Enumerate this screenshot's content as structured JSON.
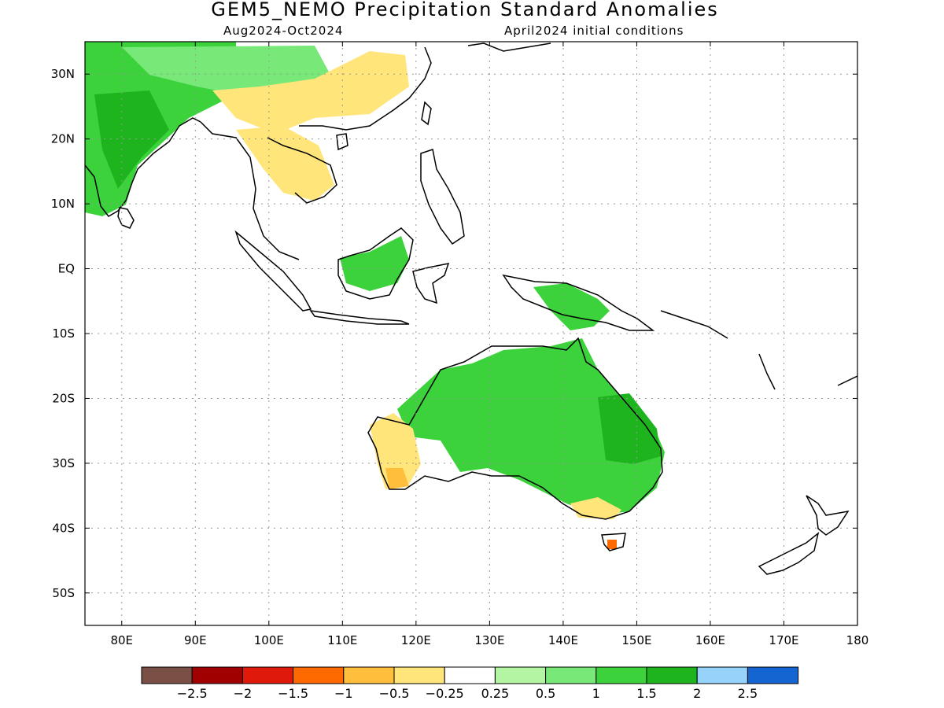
{
  "title": "GEM5_NEMO Precipitation Standard Anomalies",
  "period": "Aug2024-Oct2024",
  "initial_conditions": "April2024 initial conditions",
  "map": {
    "lon_range": [
      75,
      180
    ],
    "lat_range": [
      -55,
      35
    ],
    "lon_ticks": [
      {
        "value": 80,
        "label": "80E"
      },
      {
        "value": 90,
        "label": "90E"
      },
      {
        "value": 100,
        "label": "100E"
      },
      {
        "value": 110,
        "label": "110E"
      },
      {
        "value": 120,
        "label": "120E"
      },
      {
        "value": 130,
        "label": "130E"
      },
      {
        "value": 140,
        "label": "140E"
      },
      {
        "value": 150,
        "label": "150E"
      },
      {
        "value": 160,
        "label": "160E"
      },
      {
        "value": 170,
        "label": "170E"
      },
      {
        "value": 180,
        "label": "180"
      }
    ],
    "lat_ticks": [
      {
        "value": 30,
        "label": "30N"
      },
      {
        "value": 20,
        "label": "20N"
      },
      {
        "value": 10,
        "label": "10N"
      },
      {
        "value": 0,
        "label": "EQ"
      },
      {
        "value": -10,
        "label": "10S"
      },
      {
        "value": -20,
        "label": "20S"
      },
      {
        "value": -30,
        "label": "30S"
      },
      {
        "value": -40,
        "label": "40S"
      },
      {
        "value": -50,
        "label": "50S"
      }
    ],
    "grid": true
  },
  "colorbar": {
    "colors": [
      "#7a5046",
      "#a00000",
      "#e01a0a",
      "#ff6a00",
      "#ffbe3c",
      "#ffe57a",
      "#ffffff",
      "#b4f5a4",
      "#78e878",
      "#3cd23c",
      "#1eb41e",
      "#96d2fa",
      "#1464d2"
    ],
    "labels": [
      "-2.5",
      "-2",
      "-1.5",
      "-1",
      "-0.5",
      "-0.25",
      "0.25",
      "0.5",
      "1",
      "1.5",
      "2",
      "2.5"
    ]
  },
  "regions": [
    {
      "name": "India",
      "level": "1"
    },
    {
      "name": "India core",
      "level": "1.5"
    },
    {
      "name": "Tibet",
      "level": "0.5"
    },
    {
      "name": "South China",
      "level": "-0.5"
    },
    {
      "name": "Indochina",
      "level": "-0.5"
    },
    {
      "name": "Borneo",
      "level": "1"
    },
    {
      "name": "New Guinea",
      "level": "1"
    },
    {
      "name": "North Australia",
      "level": "1"
    },
    {
      "name": "East Australia",
      "level": "1.5"
    },
    {
      "name": "Southeast Australia",
      "level": "1"
    },
    {
      "name": "Southwest Australia",
      "level": "-0.5"
    },
    {
      "name": "Southwest Australia tip",
      "level": "-1"
    },
    {
      "name": "Victoria coast",
      "level": "-0.5"
    },
    {
      "name": "Tasmania",
      "level": "-1.5"
    }
  ]
}
